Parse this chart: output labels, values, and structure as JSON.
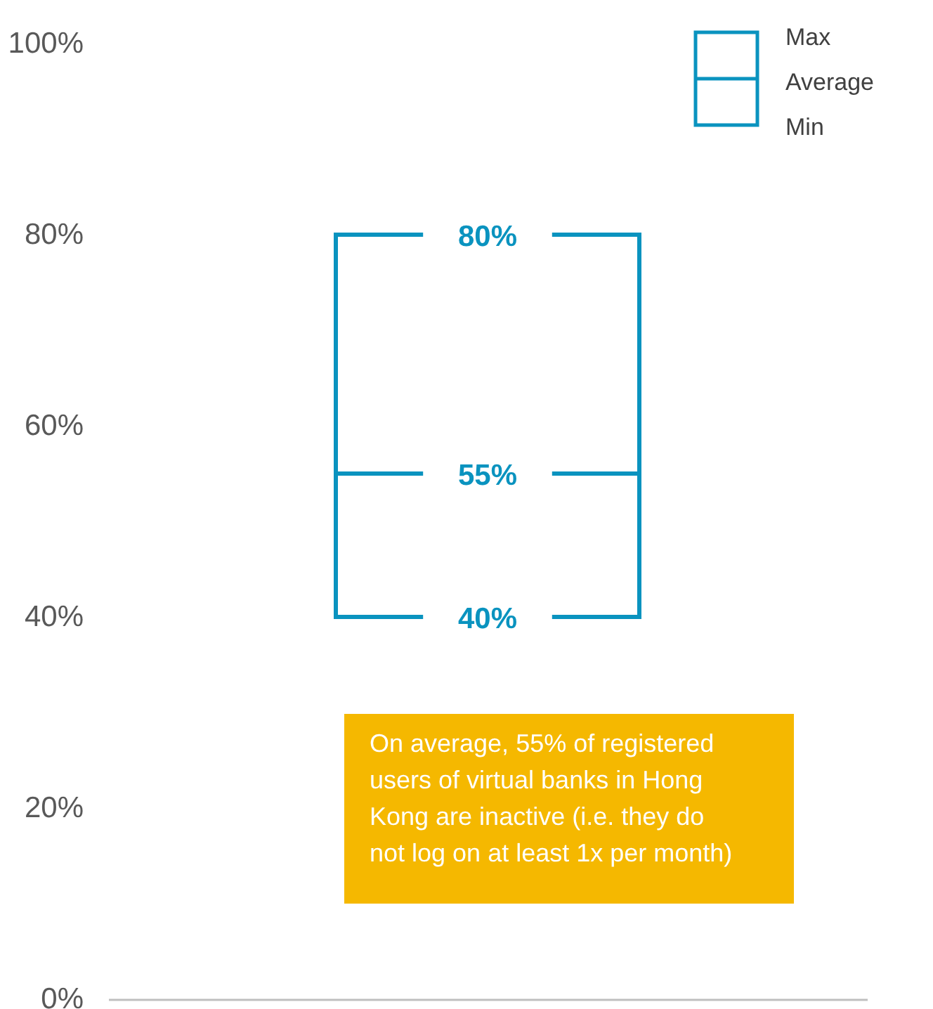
{
  "chart_data": {
    "type": "box",
    "categories": [
      null
    ],
    "color": "#0a93bf",
    "boxes": [
      {
        "low": 40,
        "q1": 40,
        "median": 55,
        "q3": 80,
        "high": 80
      }
    ],
    "ylim": [
      0,
      100
    ],
    "yticks": [
      {
        "value": 0,
        "label": "0%"
      },
      {
        "value": 20,
        "label": "20%"
      },
      {
        "value": 40,
        "label": "40%"
      },
      {
        "value": 60,
        "label": "60%"
      },
      {
        "value": 80,
        "label": "80%"
      },
      {
        "value": 100,
        "label": "100%"
      }
    ],
    "annotations": [
      "Max",
      "Average",
      "Min",
      {
        "text": "80%",
        "y": 80
      },
      {
        "text": "55%",
        "y": 55
      },
      {
        "text": "40%",
        "y": 40
      },
      "On average, 55% of registered users of virtual banks in Hong Kong are inactive (i.e. they do not log on at least 1x per month)"
    ]
  }
}
